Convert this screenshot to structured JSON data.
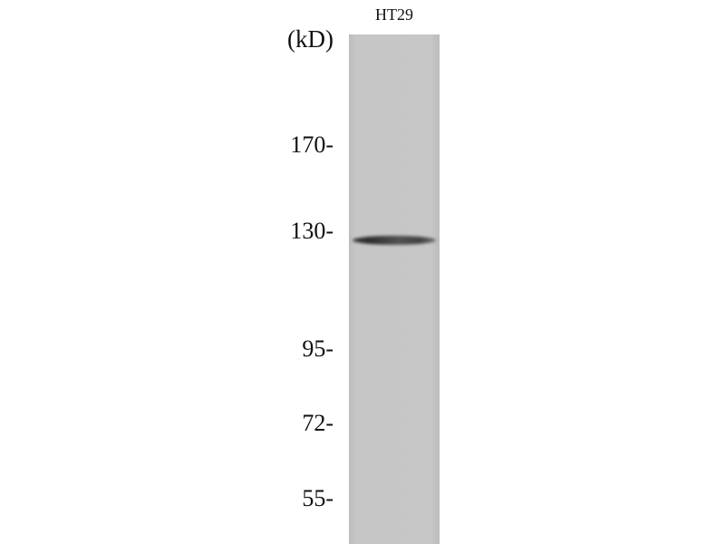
{
  "lane_label": "HT29",
  "unit_label": "(kD)",
  "markers": [
    "170-",
    "130-",
    "95-",
    "72-",
    "55-"
  ],
  "band": {
    "approx_kD": 125,
    "color": "#333333"
  },
  "colors": {
    "membrane": "#c6c6c6",
    "background": "#ffffff"
  }
}
